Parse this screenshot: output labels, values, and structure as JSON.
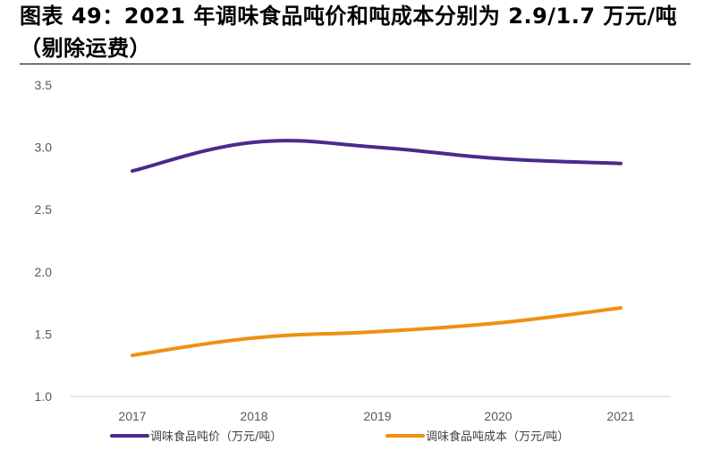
{
  "title": "图表 49：2021 年调味食品吨价和吨成本分别为 2.9/1.7 万元/吨（剔除运费）",
  "chart_data": {
    "type": "line",
    "x": [
      "2017",
      "2018",
      "2019",
      "2020",
      "2021"
    ],
    "ylim": [
      1.0,
      3.5
    ],
    "yticks": [
      "1.0",
      "1.5",
      "2.0",
      "2.5",
      "3.0",
      "3.5"
    ],
    "grid": false,
    "legend_position": "bottom",
    "series": [
      {
        "name": "调味食品吨价（万元/吨）",
        "color": "#4B2A8C",
        "values": [
          2.81,
          3.04,
          3.0,
          2.91,
          2.87
        ]
      },
      {
        "name": "调味食品吨成本（万元/吨）",
        "color": "#F0900F",
        "values": [
          1.33,
          1.47,
          1.52,
          1.59,
          1.71
        ]
      }
    ]
  }
}
